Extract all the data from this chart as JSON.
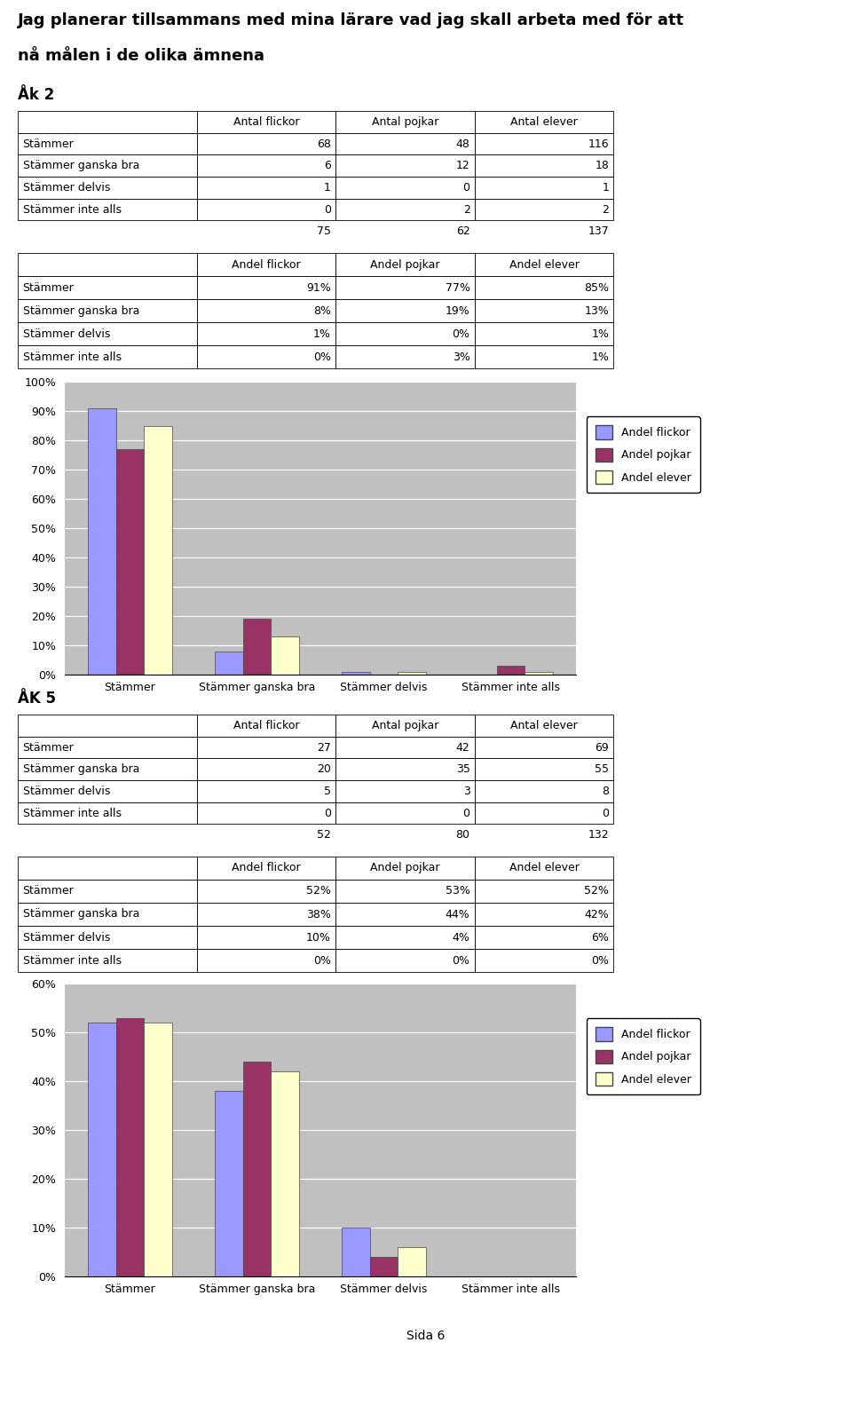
{
  "title_line1": "Jag planerar tillsammans med mina lärare vad jag skall arbeta med för att",
  "title_line2": "nå målen i de olika ämnena",
  "ak2_label": "Åk 2",
  "ak5_label": "ÅK 5",
  "footer": "Sida 6",
  "categories": [
    "Stämmer",
    "Stämmer ganska bra",
    "Stämmer delvis",
    "Stämmer inte alls"
  ],
  "ak2_antal": {
    "rows": [
      [
        "Stämmer",
        68,
        48,
        116
      ],
      [
        "Stämmer ganska bra",
        6,
        12,
        18
      ],
      [
        "Stämmer delvis",
        1,
        0,
        1
      ],
      [
        "Stämmer inte alls",
        0,
        2,
        2
      ]
    ],
    "totals": [
      "",
      75,
      62,
      137
    ]
  },
  "ak2_andel": {
    "rows": [
      [
        "Stämmer",
        "91%",
        "77%",
        "85%"
      ],
      [
        "Stämmer ganska bra",
        "8%",
        "19%",
        "13%"
      ],
      [
        "Stämmer delvis",
        "1%",
        "0%",
        "1%"
      ],
      [
        "Stämmer inte alls",
        "0%",
        "3%",
        "1%"
      ]
    ]
  },
  "ak2_chart": {
    "flickor": [
      0.91,
      0.08,
      0.01,
      0.0
    ],
    "pojkar": [
      0.77,
      0.19,
      0.0,
      0.03
    ],
    "elever": [
      0.85,
      0.13,
      0.01,
      0.01
    ],
    "ylim": [
      0,
      1.0
    ],
    "yticks": [
      0.0,
      0.1,
      0.2,
      0.3,
      0.4,
      0.5,
      0.6,
      0.7,
      0.8,
      0.9,
      1.0
    ],
    "yticklabels": [
      "0%",
      "10%",
      "20%",
      "30%",
      "40%",
      "50%",
      "60%",
      "70%",
      "80%",
      "90%",
      "100%"
    ]
  },
  "ak5_antal": {
    "rows": [
      [
        "Stämmer",
        27,
        42,
        69
      ],
      [
        "Stämmer ganska bra",
        20,
        35,
        55
      ],
      [
        "Stämmer delvis",
        5,
        3,
        8
      ],
      [
        "Stämmer inte alls",
        0,
        0,
        0
      ]
    ],
    "totals": [
      "",
      52,
      80,
      132
    ]
  },
  "ak5_andel": {
    "rows": [
      [
        "Stämmer",
        "52%",
        "53%",
        "52%"
      ],
      [
        "Stämmer ganska bra",
        "38%",
        "44%",
        "42%"
      ],
      [
        "Stämmer delvis",
        "10%",
        "4%",
        "6%"
      ],
      [
        "Stämmer inte alls",
        "0%",
        "0%",
        "0%"
      ]
    ]
  },
  "ak5_chart": {
    "flickor": [
      0.52,
      0.38,
      0.1,
      0.0
    ],
    "pojkar": [
      0.53,
      0.44,
      0.04,
      0.0
    ],
    "elever": [
      0.52,
      0.42,
      0.06,
      0.0
    ],
    "ylim": [
      0,
      0.6
    ],
    "yticks": [
      0.0,
      0.1,
      0.2,
      0.3,
      0.4,
      0.5,
      0.6
    ],
    "yticklabels": [
      "0%",
      "10%",
      "20%",
      "30%",
      "40%",
      "50%",
      "60%"
    ]
  },
  "col_headers_antal": [
    "",
    "Antal flickor",
    "Antal pojkar",
    "Antal elever"
  ],
  "col_headers_andel": [
    "",
    "Andel flickor",
    "Andel pojkar",
    "Andel elever"
  ],
  "bar_colors": [
    "#9999FF",
    "#993366",
    "#FFFFCC"
  ],
  "legend_labels": [
    "Andel flickor",
    "Andel pojkar",
    "Andel elever"
  ],
  "chart_bg": "#C0C0C0",
  "page_bg": "#FFFFFF",
  "font_size_title": 13,
  "font_size_section": 12,
  "font_size_table": 9,
  "font_size_chart": 9,
  "font_size_footer": 10
}
